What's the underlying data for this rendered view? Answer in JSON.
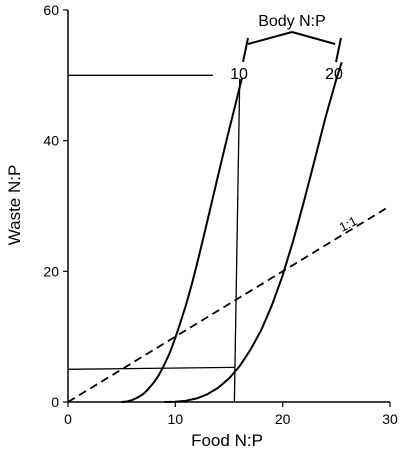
{
  "chart_data": {
    "type": "line",
    "title": "",
    "xlabel": "Food N:P",
    "ylabel": "Waste N:P",
    "xlim": [
      0,
      30
    ],
    "ylim": [
      0,
      60
    ],
    "xticks": [
      0,
      10,
      20,
      30
    ],
    "yticks": [
      0,
      20,
      40,
      60
    ],
    "grid": false,
    "legend": "none",
    "series": [
      {
        "name": "10",
        "style": "solid",
        "x": [
          5.0,
          5.5,
          6.0,
          6.5,
          7.0,
          7.5,
          8.0,
          8.5,
          9.0,
          9.5,
          10.0,
          10.5,
          11.0,
          11.5,
          12.0,
          12.5,
          13.0,
          13.5,
          14.0,
          14.5,
          15.0,
          15.5,
          16.0,
          16.2
        ],
        "y": [
          0.0,
          0.07,
          0.3,
          0.7,
          1.2,
          2.0,
          3.0,
          4.2,
          5.8,
          7.6,
          9.8,
          12.3,
          14.9,
          17.8,
          21.0,
          24.4,
          27.8,
          31.3,
          34.8,
          38.2,
          41.6,
          44.9,
          48.2,
          49.5
        ]
      },
      {
        "name": "20",
        "style": "solid",
        "x": [
          9.0,
          10.0,
          11.0,
          12.0,
          13.0,
          14.0,
          15.0,
          16.0,
          17.0,
          18.0,
          19.0,
          20.0,
          21.0,
          22.0,
          23.0,
          24.0,
          25.0,
          25.5
        ],
        "y": [
          0.0,
          0.05,
          0.2,
          0.55,
          1.2,
          2.2,
          3.6,
          5.5,
          8.0,
          11.0,
          14.8,
          19.4,
          24.8,
          30.8,
          37.2,
          43.6,
          49.4,
          52.0
        ]
      },
      {
        "name": "1:1",
        "style": "dashed",
        "x": [
          0,
          30
        ],
        "y": [
          0,
          30
        ]
      }
    ],
    "guide_lines": [
      {
        "x": [
          0,
          13.5
        ],
        "y": [
          50,
          50
        ]
      },
      {
        "x": [
          0,
          15.5
        ],
        "y": [
          5,
          5.3
        ]
      },
      {
        "x": [
          15.5,
          16.0
        ],
        "y": [
          0,
          49.5
        ]
      }
    ],
    "annotations": {
      "body_label": "Body N:P",
      "curve_labels": [
        "10",
        "20"
      ],
      "line_label": "1:1"
    }
  }
}
